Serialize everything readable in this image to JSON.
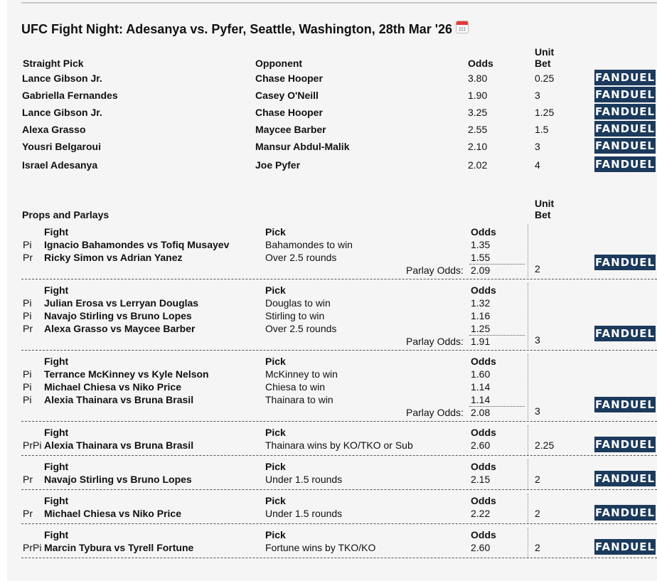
{
  "event": {
    "title": "UFC Fight Night: Adesanya vs. Pyfer, Seattle, Washington, 28th Mar '26"
  },
  "straight": {
    "headers": {
      "pick": "Straight Pick",
      "opponent": "Opponent",
      "odds": "Odds",
      "unit1": "Unit",
      "unit2": "Bet"
    },
    "rows": [
      {
        "pick": "Lance Gibson Jr.",
        "opponent": "Chase Hooper",
        "odds": "3.80",
        "bet": "0.25"
      },
      {
        "pick": "Gabriella Fernandes",
        "opponent": "Casey O'Neill",
        "odds": "1.90",
        "bet": "3"
      },
      {
        "pick": "Lance Gibson Jr.",
        "opponent": "Chase Hooper",
        "odds": "3.25",
        "bet": "1.25"
      },
      {
        "pick": "Alexa Grasso",
        "opponent": "Maycee Barber",
        "odds": "2.55",
        "bet": "1.5"
      },
      {
        "pick": "Yousri Belgaroui",
        "opponent": "Mansur Abdul-Malik",
        "odds": "2.10",
        "bet": "3"
      },
      {
        "pick": "Israel Adesanya",
        "opponent": "Joe Pyfer",
        "odds": "2.02",
        "bet": "4"
      }
    ]
  },
  "props": {
    "title": "Props and Parlays",
    "unit1": "Unit",
    "unit2": "Bet",
    "labels": {
      "fight": "Fight",
      "pick": "Pick",
      "odds": "Odds",
      "parlay_odds": "Parlay Odds:"
    },
    "groups": [
      {
        "legs": [
          {
            "type": "Pi",
            "fight": "Ignacio Bahamondes vs Tofiq Musayev",
            "pick": "Bahamondes to win",
            "odds": "1.35"
          },
          {
            "type": "Pr",
            "fight": "Ricky Simon vs Adrian Yanez",
            "pick": "Over 2.5 rounds",
            "odds": "1.55"
          }
        ],
        "parlay_odds": "2.09",
        "bet": "2"
      },
      {
        "legs": [
          {
            "type": "Pi",
            "fight": "Julian Erosa vs Lerryan Douglas",
            "pick": "Douglas to win",
            "odds": "1.32"
          },
          {
            "type": "Pi",
            "fight": "Navajo Stirling vs Bruno Lopes",
            "pick": "Stirling to win",
            "odds": "1.16"
          },
          {
            "type": "Pr",
            "fight": "Alexa Grasso vs Maycee Barber",
            "pick": "Over 2.5 rounds",
            "odds": "1.25"
          }
        ],
        "parlay_odds": "1.91",
        "bet": "3"
      },
      {
        "legs": [
          {
            "type": "Pi",
            "fight": "Terrance McKinney vs Kyle Nelson",
            "pick": "McKinney to win",
            "odds": "1.60"
          },
          {
            "type": "Pi",
            "fight": "Michael Chiesa vs Niko Price",
            "pick": "Chiesa to win",
            "odds": "1.14"
          },
          {
            "type": "Pi",
            "fight": "Alexia Thainara vs Bruna Brasil",
            "pick": "Thainara to win",
            "odds": "1.14"
          }
        ],
        "parlay_odds": "2.08",
        "bet": "3"
      },
      {
        "legs": [
          {
            "type": "PrPi",
            "fight": "Alexia Thainara vs Bruna Brasil",
            "pick": "Thainara wins by KO/TKO or Sub",
            "odds": "2.60"
          }
        ],
        "bet": "2.25"
      },
      {
        "legs": [
          {
            "type": "Pr",
            "fight": "Navajo Stirling vs Bruno Lopes",
            "pick": "Under 1.5 rounds",
            "odds": "2.15"
          }
        ],
        "bet": "2"
      },
      {
        "legs": [
          {
            "type": "Pr",
            "fight": "Michael Chiesa vs Niko Price",
            "pick": "Under 1.5 rounds",
            "odds": "2.22"
          }
        ],
        "bet": "2"
      },
      {
        "legs": [
          {
            "type": "PrPi",
            "fight": "Marcin Tybura vs Tyrell Fortune",
            "pick": "Fortune wins by TKO/KO",
            "odds": "2.60"
          }
        ],
        "bet": "2"
      }
    ]
  },
  "sportsbook": {
    "label": "FANDUEL",
    "color": "#1b3a5c"
  },
  "icons": {
    "title_icon": "calendar-icon"
  }
}
